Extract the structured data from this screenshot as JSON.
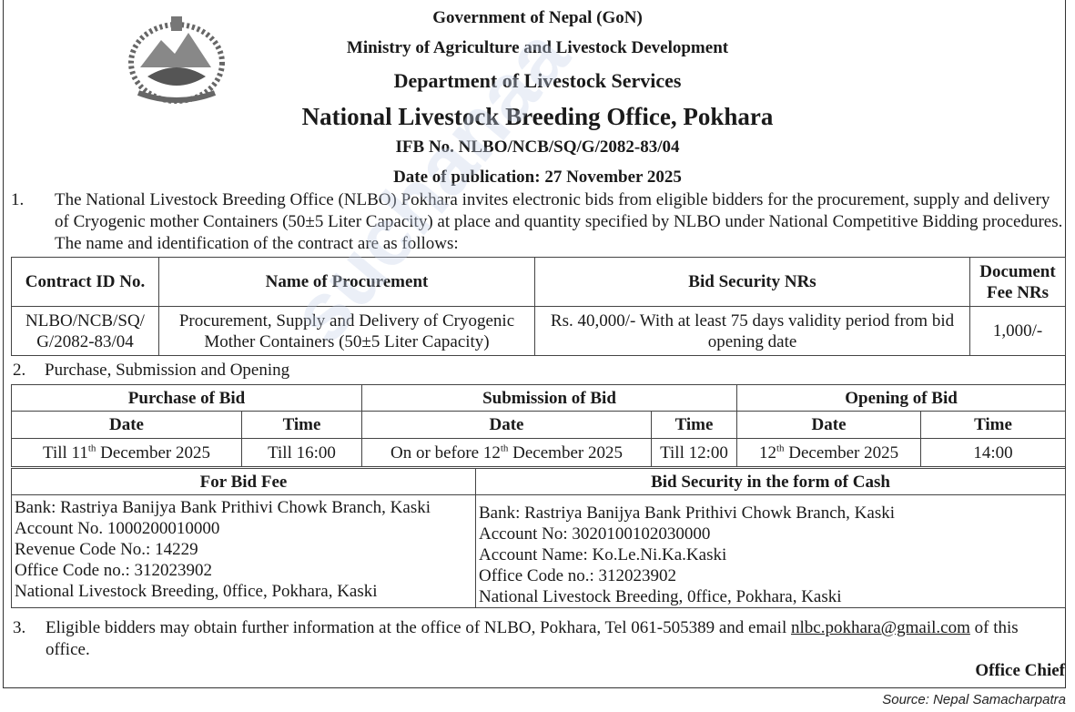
{
  "header": {
    "line1": "Government of Nepal (GoN)",
    "line2": "Ministry of Agriculture and Livestock Development",
    "line3": "Department of Livestock Services",
    "line4": "National Livestock Breeding Office, Pokhara",
    "ifb": "IFB No. NLBO/NCB/SQ/G/2082-83/04",
    "publication_date": "Date of publication: 27 November 2025"
  },
  "para1": {
    "num": "1.",
    "text": "The National Livestock Breeding Office (NLBO) Pokhara invites electronic bids from eligible bidders for the procurement, supply and delivery of Cryogenic mother Containers (50±5 Liter Capacity) at place and quantity specified by NLBO under National Competitive Bidding procedures. The name and identification of the contract are as follows:"
  },
  "contract_table": {
    "headers": [
      "Contract ID No.",
      "Name of Procurement",
      "Bid Security NRs",
      "Document Fee NRs"
    ],
    "row": [
      "NLBO/NCB/SQ/ G/2082-83/04",
      "Procurement, Supply and Delivery of Cryogenic Mother Containers (50±5  Liter Capacity)",
      "Rs. 40,000/- With at least 75 days validity period from bid opening date",
      "1,000/-"
    ]
  },
  "para2": {
    "num": "2.",
    "text": "Purchase, Submission and Opening"
  },
  "schedule_table": {
    "groups": [
      "Purchase of Bid",
      "Submission of Bid",
      "Opening of Bid"
    ],
    "subheaders": [
      "Date",
      "Time",
      "Date",
      "Time",
      "Date",
      "Time"
    ],
    "purchase_date": {
      "pre": "Till 11",
      "sup": "th",
      "post": " December 2025"
    },
    "purchase_time": "Till 16:00",
    "submission_date": {
      "pre": "On or before 12",
      "sup": "th",
      "post": " December 2025"
    },
    "submission_time": "Till 12:00",
    "opening_date": {
      "pre": "12",
      "sup": "th",
      "post": " December 2025"
    },
    "opening_time": "14:00"
  },
  "bank_table": {
    "headers": [
      "For Bid Fee",
      "Bid Security in the form of Cash"
    ],
    "bid_fee": [
      "Bank: Rastriya Banijya Bank Prithivi Chowk Branch, Kaski",
      "Account No. 1000200010000",
      "Revenue Code No.: 14229",
      "Office Code no.: 312023902",
      "National Livestock Breeding, 0ffice, Pokhara, Kaski"
    ],
    "bid_security": [
      "Bank: Rastriya Banijya Bank Prithivi Chowk Branch, Kaski",
      "Account No: 3020100102030000",
      "Account Name: Ko.Le.Ni.Ka.Kaski",
      "Office Code no.: 312023902",
      "National Livestock Breeding, 0ffice, Pokhara, Kaski"
    ]
  },
  "para3": {
    "num": "3.",
    "text_before": "Eligible bidders may obtain further information at the office of NLBO, Pokhara, Tel 061-505389 and email ",
    "email": "nlbc.pokhara@gmail.com",
    "text_after": " of this office."
  },
  "signature": "Office Chief",
  "source": "Source: Nepal Samacharpatra",
  "watermark": "suchanaa"
}
